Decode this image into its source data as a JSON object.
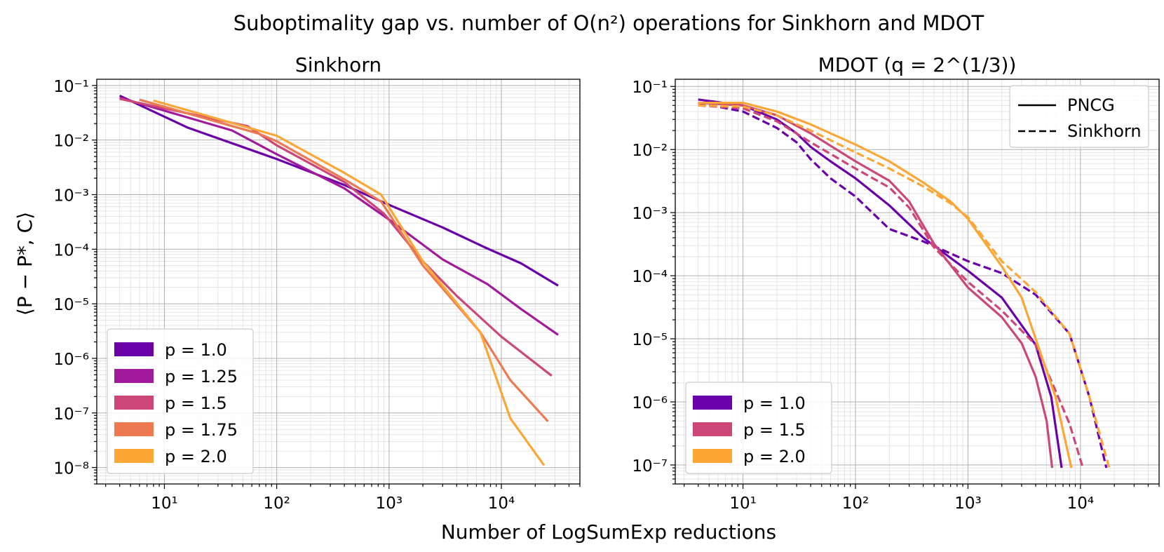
{
  "chart_data": {
    "suptitle": "Suboptimality gap vs. number of O(n²) operations for Sinkhorn and MDOT",
    "xlabel": "Number of LogSumExp reductions",
    "ylabel": "⟨P − P*, C⟩",
    "panels": [
      {
        "title": "Sinkhorn",
        "type": "line",
        "xscale": "log",
        "yscale": "log",
        "xlim": [
          2.5,
          50000
        ],
        "ylim": [
          5e-09,
          0.13
        ],
        "xtick_values": [
          10,
          100,
          1000,
          10000
        ],
        "xtick_labels": [
          "10¹",
          "10²",
          "10³",
          "10⁴"
        ],
        "ytick_values": [
          1e-08,
          1e-07,
          1e-06,
          1e-05,
          0.0001,
          0.001,
          0.01,
          0.1
        ],
        "ytick_labels": [
          "10⁻⁸",
          "10⁻⁷",
          "10⁻⁶",
          "10⁻⁵",
          "10⁻⁴",
          "10⁻³",
          "10⁻²",
          "10⁻¹"
        ],
        "grid": true,
        "legend": {
          "position": "lower-left",
          "style": "patch",
          "series_indices": [
            0,
            1,
            2,
            3,
            4
          ]
        },
        "series": [
          {
            "name": "p = 1.0",
            "color": "#6a00a8",
            "dash": "solid",
            "x": [
              4,
              16,
              100,
              400,
              1000,
              3000,
              7000,
              15000,
              32000
            ],
            "y": [
              0.065,
              0.017,
              0.0045,
              0.0015,
              0.00065,
              0.00025,
              0.00011,
              5.5e-05,
              2.15e-05
            ]
          },
          {
            "name": "p = 1.25",
            "color": "#a11a9c",
            "dash": "solid",
            "x": [
              4,
              40,
              100,
              400,
              1000,
              3000,
              7500,
              15000,
              32000
            ],
            "y": [
              0.06,
              0.015,
              0.0055,
              0.0013,
              0.00035,
              6.5e-05,
              2.3e-05,
              8e-06,
              2.7e-06
            ]
          },
          {
            "name": "p = 1.5",
            "color": "#cc4778",
            "dash": "solid",
            "x": [
              4,
              55,
              100,
              400,
              900,
              2000,
              4000,
              10000,
              28000
            ],
            "y": [
              0.057,
              0.018,
              0.008,
              0.0017,
              0.00045,
              6e-05,
              1.4e-05,
              2.5e-06,
              4.8e-07
            ]
          },
          {
            "name": "p = 1.75",
            "color": "#ed7953",
            "dash": "solid",
            "x": [
              6,
              70,
              100,
              400,
              850,
              2000,
              6500,
              12000,
              26000
            ],
            "y": [
              0.055,
              0.013,
              0.0095,
              0.0019,
              0.00075,
              5e-05,
              3e-06,
              4e-07,
              7e-08
            ]
          },
          {
            "name": "p = 2.0",
            "color": "#fca636",
            "dash": "solid",
            "x": [
              8,
              100,
              400,
              850,
              2000,
              6500,
              12000,
              24000
            ],
            "y": [
              0.053,
              0.012,
              0.0025,
              0.001,
              6e-05,
              3e-06,
              8e-08,
              1.1e-08
            ]
          }
        ]
      },
      {
        "title": "MDOT (q = 2^(1/3))",
        "type": "line",
        "xscale": "log",
        "yscale": "log",
        "xlim": [
          2.5,
          50000
        ],
        "ylim": [
          5e-08,
          0.13
        ],
        "xtick_values": [
          10,
          100,
          1000,
          10000
        ],
        "xtick_labels": [
          "10¹",
          "10²",
          "10³",
          "10⁴"
        ],
        "ytick_values": [
          1e-07,
          1e-06,
          1e-05,
          0.0001,
          0.001,
          0.01,
          0.1
        ],
        "ytick_labels": [
          "10⁻⁷",
          "10⁻⁶",
          "10⁻⁵",
          "10⁻⁴",
          "10⁻³",
          "10⁻²",
          "10⁻¹"
        ],
        "grid": true,
        "legend": {
          "position": "lower-left",
          "style": "patch",
          "series_indices": [
            0,
            2,
            4
          ]
        },
        "style_legend": {
          "position": "top-right",
          "entries": [
            {
              "label": "PNCG",
              "dash": "solid"
            },
            {
              "label": "Sinkhorn",
              "dash": "dashed"
            }
          ]
        },
        "series": [
          {
            "name": "p = 1.0",
            "color": "#6a00a8",
            "dash": "solid",
            "x": [
              4,
              10,
              20,
              30,
              40,
              60,
              100,
              200,
              400,
              1000,
              2000,
              4000,
              5500,
              6800
            ],
            "y": [
              0.062,
              0.05,
              0.03,
              0.018,
              0.011,
              0.0065,
              0.0035,
              0.0013,
              0.0004,
              0.00012,
              4.5e-05,
              8e-06,
              1.2e-06,
              9e-08
            ]
          },
          {
            "name": "p = 1.0",
            "color": "#6a00a8",
            "dash": "dashed",
            "x": [
              4,
              10,
              20,
              30,
              40,
              60,
              100,
              200,
              400,
              1000,
              2000,
              4000,
              8000,
              12000,
              17000
            ],
            "y": [
              0.055,
              0.04,
              0.022,
              0.013,
              0.007,
              0.0035,
              0.0018,
              0.00055,
              0.00035,
              0.00017,
              0.00011,
              5e-05,
              1.2e-05,
              1.2e-06,
              9e-08
            ]
          },
          {
            "name": "p = 1.5",
            "color": "#cc4778",
            "dash": "solid",
            "x": [
              4,
              10,
              20,
              40,
              100,
              200,
              300,
              500,
              1000,
              2000,
              3000,
              4000,
              5000,
              5600
            ],
            "y": [
              0.055,
              0.05,
              0.035,
              0.018,
              0.0065,
              0.0032,
              0.0015,
              0.00032,
              6.5e-05,
              2.2e-05,
              8.5e-06,
              2.5e-06,
              5e-07,
              9e-08
            ]
          },
          {
            "name": "p = 1.5",
            "color": "#cc4778",
            "dash": "dashed",
            "x": [
              4,
              10,
              20,
              40,
              100,
              200,
              300,
              500,
              1000,
              2000,
              4000,
              6000,
              8000,
              10500
            ],
            "y": [
              0.05,
              0.045,
              0.028,
              0.013,
              0.005,
              0.0025,
              0.0012,
              0.00028,
              8e-05,
              2.8e-05,
              8e-06,
              1.5e-06,
              4.5e-07,
              9e-08
            ]
          },
          {
            "name": "p = 2.0",
            "color": "#fca636",
            "dash": "solid",
            "x": [
              4,
              10,
              20,
              40,
              100,
              200,
              400,
              700,
              1000,
              2000,
              3000,
              4000,
              6000,
              8300
            ],
            "y": [
              0.055,
              0.055,
              0.04,
              0.025,
              0.012,
              0.0065,
              0.003,
              0.0015,
              0.0008,
              0.00014,
              4.5e-05,
              1e-05,
              1.2e-06,
              9e-08
            ]
          },
          {
            "name": "p = 2.0",
            "color": "#fca636",
            "dash": "dashed",
            "x": [
              4,
              10,
              20,
              40,
              100,
              200,
              400,
              700,
              1000,
              2000,
              4000,
              8000,
              12000,
              18000
            ],
            "y": [
              0.05,
              0.048,
              0.035,
              0.02,
              0.009,
              0.005,
              0.0026,
              0.0014,
              0.00085,
              0.00017,
              5.5e-05,
              1.2e-05,
              1.2e-06,
              9e-08
            ]
          }
        ]
      }
    ]
  }
}
